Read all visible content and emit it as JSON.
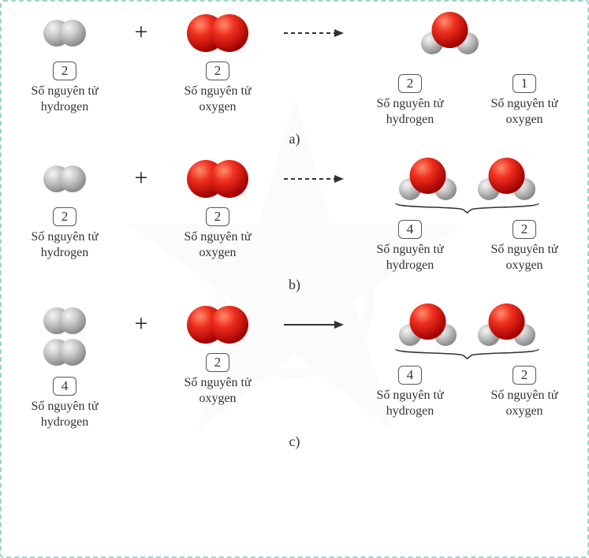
{
  "colors": {
    "hydrogen": "#b8b8b8",
    "hydrogen_hi": "#e6e6e6",
    "hydrogen_lo": "#8c8c8c",
    "oxygen": "#e41c1c",
    "oxygen_hi": "#ff7a5c",
    "oxygen_lo": "#a00000",
    "border": "#9ed6c8",
    "text": "#333333",
    "arrow": "#333333"
  },
  "labels": {
    "hydrogen": "Số nguyên tử\nhydrogen",
    "oxygen": "Số nguyên tử\noxygen"
  },
  "reactions": [
    {
      "id": "a",
      "section": "a)",
      "arrow": "dashed",
      "reactants": [
        {
          "molecule": "H2",
          "count": "2",
          "label_key": "hydrogen",
          "stack": 1
        },
        {
          "molecule": "O2",
          "count": "2",
          "label_key": "oxygen",
          "stack": 1
        }
      ],
      "products_molecules": 1,
      "products": [
        {
          "count": "2",
          "label_key": "hydrogen"
        },
        {
          "count": "1",
          "label_key": "oxygen"
        }
      ]
    },
    {
      "id": "b",
      "section": "b)",
      "arrow": "dashed",
      "reactants": [
        {
          "molecule": "H2",
          "count": "2",
          "label_key": "hydrogen",
          "stack": 1
        },
        {
          "molecule": "O2",
          "count": "2",
          "label_key": "oxygen",
          "stack": 1
        }
      ],
      "products_molecules": 2,
      "products": [
        {
          "count": "4",
          "label_key": "hydrogen"
        },
        {
          "count": "2",
          "label_key": "oxygen"
        }
      ]
    },
    {
      "id": "c",
      "section": "c)",
      "arrow": "solid",
      "reactants": [
        {
          "molecule": "H2",
          "count": "4",
          "label_key": "hydrogen",
          "stack": 2
        },
        {
          "molecule": "O2",
          "count": "2",
          "label_key": "oxygen",
          "stack": 1
        }
      ],
      "products_molecules": 2,
      "products": [
        {
          "count": "4",
          "label_key": "hydrogen"
        },
        {
          "count": "2",
          "label_key": "oxygen"
        }
      ]
    }
  ]
}
